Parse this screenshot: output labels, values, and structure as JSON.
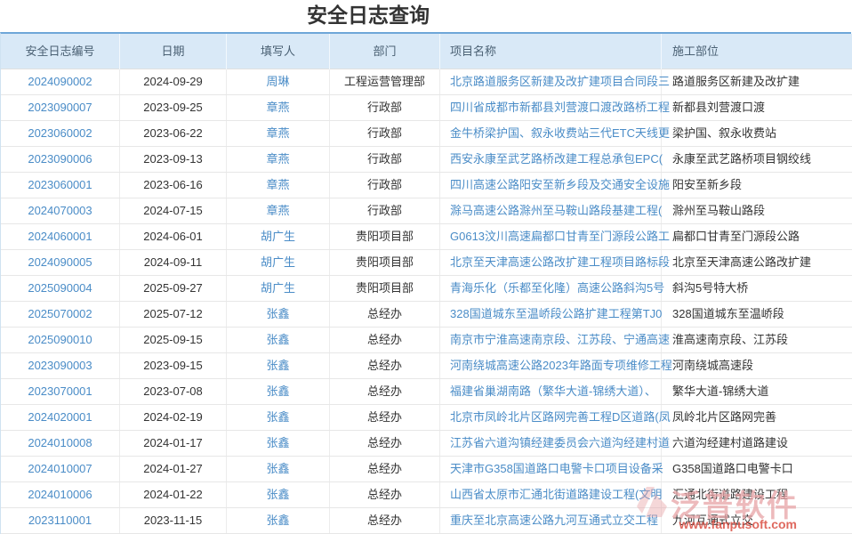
{
  "page": {
    "title": "安全日志查询"
  },
  "table": {
    "columns": [
      {
        "key": "log_no",
        "label": "安全日志编号",
        "link": true
      },
      {
        "key": "date",
        "label": "日期",
        "link": false
      },
      {
        "key": "writer",
        "label": "填写人",
        "link": true
      },
      {
        "key": "dept",
        "label": "部门",
        "link": false
      },
      {
        "key": "project",
        "label": "项目名称",
        "link": true
      },
      {
        "key": "part",
        "label": "施工部位",
        "link": false
      }
    ],
    "rows": [
      [
        "2024090002",
        "2024-09-29",
        "周琳",
        "工程运营管理部",
        "北京路道服务区新建及改扩建项目合同段三",
        "路道服务区新建及改扩建"
      ],
      [
        "2023090007",
        "2023-09-25",
        "章燕",
        "行政部",
        "四川省成都市新都县刘营渡口渡改路桥工程",
        "新都县刘营渡口渡"
      ],
      [
        "2023060002",
        "2023-06-22",
        "章燕",
        "行政部",
        "金牛桥梁护国、叙永收费站三代ETC天线更",
        "梁护国、叙永收费站"
      ],
      [
        "2023090006",
        "2023-09-13",
        "章燕",
        "行政部",
        "西安永康至武艺路桥改建工程总承包EPC(",
        "永康至武艺路桥项目钢绞线"
      ],
      [
        "2023060001",
        "2023-06-16",
        "章燕",
        "行政部",
        "四川高速公路阳安至新乡段及交通安全设施",
        "阳安至新乡段"
      ],
      [
        "2024070003",
        "2024-07-15",
        "章燕",
        "行政部",
        "滁马高速公路滁州至马鞍山路段基建工程(",
        "滁州至马鞍山路段"
      ],
      [
        "2024060001",
        "2024-06-01",
        "胡广生",
        "贵阳项目部",
        "G0613汶川高速扁都口甘青至门源段公路工",
        "扁都口甘青至门源段公路"
      ],
      [
        "2024090005",
        "2024-09-11",
        "胡广生",
        "贵阳项目部",
        "北京至天津高速公路改扩建工程项目路标段",
        "北京至天津高速公路改扩建"
      ],
      [
        "2025090004",
        "2025-09-27",
        "胡广生",
        "贵阳项目部",
        "青海乐化（乐都至化隆）高速公路斜沟5号",
        "斜沟5号特大桥"
      ],
      [
        "2025070002",
        "2025-07-12",
        "张鑫",
        "总经办",
        "328国道城东至温峤段公路扩建工程第TJ0",
        "328国道城东至温峤段"
      ],
      [
        "2025090010",
        "2025-09-15",
        "张鑫",
        "总经办",
        "南京市宁淮高速南京段、江苏段、宁通高速",
        "淮高速南京段、江苏段"
      ],
      [
        "2023090003",
        "2023-09-15",
        "张鑫",
        "总经办",
        "河南绕城高速公路2023年路面专项维修工程",
        "河南绕城高速段"
      ],
      [
        "2023070001",
        "2023-07-08",
        "张鑫",
        "总经办",
        "福建省巢湖南路（繁华大道-锦绣大道）、",
        "繁华大道-锦绣大道"
      ],
      [
        "2024020001",
        "2024-02-19",
        "张鑫",
        "总经办",
        "北京市凤岭北片区路网完善工程D区道路(凤",
        "凤岭北片区路网完善"
      ],
      [
        "2024010008",
        "2024-01-17",
        "张鑫",
        "总经办",
        "江苏省六道沟镇经建委员会六道沟经建村道",
        "六道沟经建村道路建设"
      ],
      [
        "2024010007",
        "2024-01-27",
        "张鑫",
        "总经办",
        "天津市G358国道路口电警卡口项目设备采",
        "G358国道路口电警卡口"
      ],
      [
        "2024010006",
        "2024-01-22",
        "张鑫",
        "总经办",
        "山西省太原市汇通北街道路建设工程(文明",
        "汇通北街道路建设工程"
      ],
      [
        "2023110001",
        "2023-11-15",
        "张鑫",
        "总经办",
        "重庆至北京高速公路九河互通式立交工程",
        "九河互通式立交"
      ]
    ]
  },
  "watermark": {
    "brand": "泛普软件",
    "url": "www.fanpusoft.com"
  },
  "colors": {
    "link": "#4a8cc7",
    "header_bg": "#d9e9f7",
    "header_top_border": "#6ea6d8",
    "body_text": "#333333",
    "watermark_pink": "#e7a3a6",
    "watermark_red": "#d94f43"
  }
}
